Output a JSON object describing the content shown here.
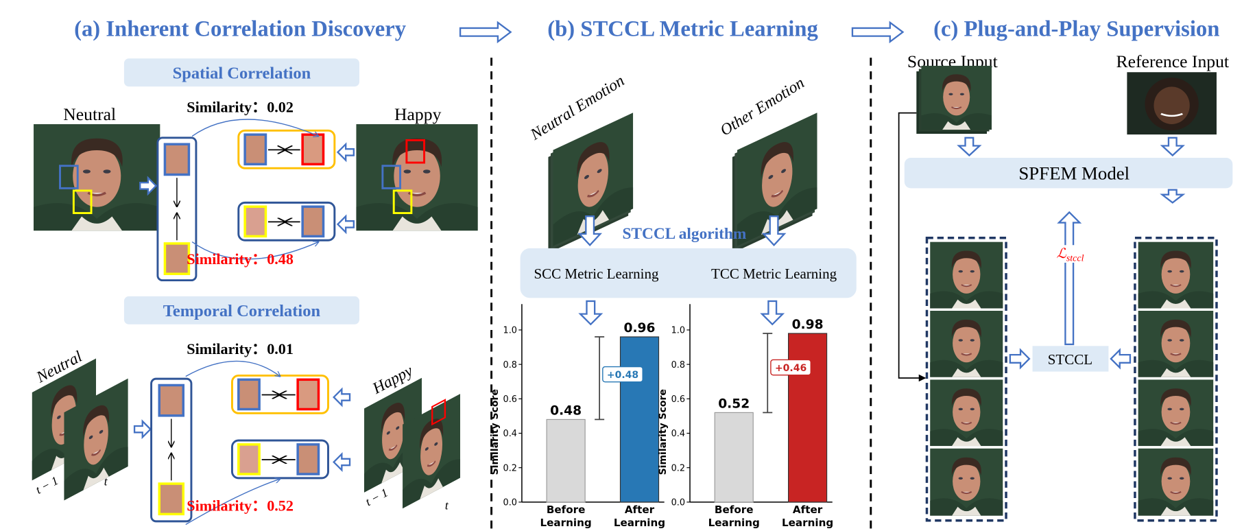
{
  "titles": {
    "a": "(a) Inherent Correlation Discovery",
    "b": "(b) STCCL Metric Learning",
    "c": "(c) Plug-and-Play Supervision"
  },
  "panel_a": {
    "spatial_title": "Spatial Correlation",
    "temporal_title": "Temporal Correlation",
    "neutral_label": "Neutral",
    "happy_label": "Happy",
    "spatial_sim_top": "Similarity：0.02",
    "spatial_sim_bottom": "Similarity：0.48",
    "temporal_neutral_label": "Neutral",
    "temporal_happy_label": "Happy",
    "temporal_sim_top": "Similarity：0.01",
    "temporal_sim_bottom": "Similarity：0.52",
    "frame_prev": "t − 1",
    "frame_curr": "t"
  },
  "panel_b": {
    "neutral_emotion": "Neutral Emotion",
    "other_emotion": "Other Emotion",
    "algorithm": "STCCL algorithm",
    "scc": "SCC Metric Learning",
    "tcc": "TCC Metric Learning"
  },
  "panel_c": {
    "source_input": "Source Input",
    "reference_input": "Reference Input",
    "model": "SPFEM Model",
    "stccl": "STCCL",
    "loss": "ℒ",
    "loss_sub": "stccl"
  },
  "colors": {
    "accent": "#4472C4",
    "panel_fill": "#DEEAF6",
    "highlight_red": "#FF0000",
    "box_yellow": "#FFC000",
    "box_navy": "#2F5597",
    "bar_before": "#D9D9D9",
    "bar_after_scc": "#2878B5",
    "bar_after_tcc": "#C82423"
  },
  "chart_data": [
    {
      "type": "bar",
      "ylabel": "Similarity Score",
      "categories": [
        "Before\nLearning",
        "After\nLearning"
      ],
      "values": [
        0.48,
        0.96
      ],
      "value_labels": [
        "0.48",
        "0.96"
      ],
      "delta_label": "+0.48",
      "colors": [
        "#D9D9D9",
        "#2878B5"
      ],
      "ylim": [
        0,
        1.15
      ],
      "yticks": [
        "0.0",
        "0.2",
        "0.4",
        "0.6",
        "0.8",
        "1.0"
      ],
      "grid": false
    },
    {
      "type": "bar",
      "ylabel": "Similarity Score",
      "categories": [
        "Before\nLearning",
        "After\nLearning"
      ],
      "values": [
        0.52,
        0.98
      ],
      "value_labels": [
        "0.52",
        "0.98"
      ],
      "delta_label": "+0.46",
      "colors": [
        "#D9D9D9",
        "#C82423"
      ],
      "ylim": [
        0,
        1.15
      ],
      "yticks": [
        "0.0",
        "0.2",
        "0.4",
        "0.6",
        "0.8",
        "1.0"
      ],
      "grid": false
    }
  ]
}
